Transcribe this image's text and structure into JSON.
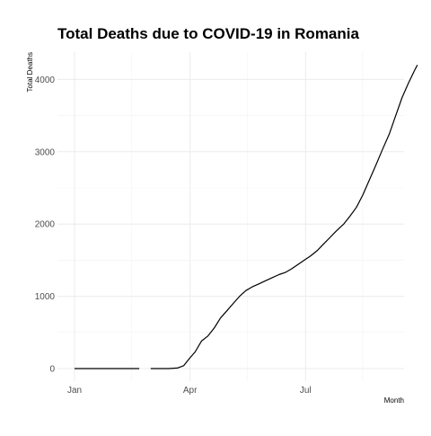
{
  "chart_data": {
    "type": "line",
    "title": "Total Deaths due to COVID-19 in Romania",
    "xlabel": "Month",
    "ylabel": "Total Deaths",
    "x_ticks": [
      "Jan",
      "Apr",
      "Jul"
    ],
    "y_ticks": [
      "0",
      "1000",
      "2000",
      "3000",
      "4000"
    ],
    "xlim": [
      "2020-01-01",
      "2020-09-30"
    ],
    "ylim": [
      0,
      4400
    ],
    "grid": true,
    "legend": "none",
    "line_color": "#000000",
    "grid_color": "#ebebeb",
    "series": [
      {
        "segments": [
          [
            [
              "2020-01-01",
              0
            ],
            [
              "2020-02-01",
              0
            ],
            [
              "2020-02-21",
              0
            ]
          ],
          [
            [
              "2020-03-01",
              0
            ],
            [
              "2020-03-15",
              0
            ],
            [
              "2020-03-22",
              8
            ],
            [
              "2020-03-27",
              40
            ],
            [
              "2020-04-01",
              150
            ],
            [
              "2020-04-05",
              230
            ],
            [
              "2020-04-10",
              380
            ],
            [
              "2020-04-15",
              450
            ],
            [
              "2020-04-20",
              560
            ],
            [
              "2020-04-25",
              700
            ],
            [
              "2020-04-30",
              800
            ],
            [
              "2020-05-05",
              900
            ],
            [
              "2020-05-10",
              1000
            ],
            [
              "2020-05-15",
              1080
            ],
            [
              "2020-05-20",
              1130
            ],
            [
              "2020-05-25",
              1170
            ],
            [
              "2020-05-31",
              1220
            ],
            [
              "2020-06-05",
              1260
            ],
            [
              "2020-06-10",
              1300
            ],
            [
              "2020-06-15",
              1330
            ],
            [
              "2020-06-20",
              1380
            ],
            [
              "2020-06-25",
              1440
            ],
            [
              "2020-06-30",
              1500
            ],
            [
              "2020-07-05",
              1560
            ],
            [
              "2020-07-10",
              1630
            ],
            [
              "2020-07-15",
              1720
            ],
            [
              "2020-07-20",
              1810
            ],
            [
              "2020-07-25",
              1900
            ],
            [
              "2020-07-31",
              2000
            ],
            [
              "2020-08-05",
              2110
            ],
            [
              "2020-08-10",
              2230
            ],
            [
              "2020-08-15",
              2400
            ],
            [
              "2020-08-20",
              2600
            ],
            [
              "2020-08-25",
              2800
            ],
            [
              "2020-08-31",
              3050
            ],
            [
              "2020-09-05",
              3250
            ],
            [
              "2020-09-10",
              3500
            ],
            [
              "2020-09-15",
              3750
            ],
            [
              "2020-09-20",
              3950
            ],
            [
              "2020-09-25",
              4130
            ],
            [
              "2020-09-27",
              4200
            ]
          ]
        ]
      }
    ]
  }
}
